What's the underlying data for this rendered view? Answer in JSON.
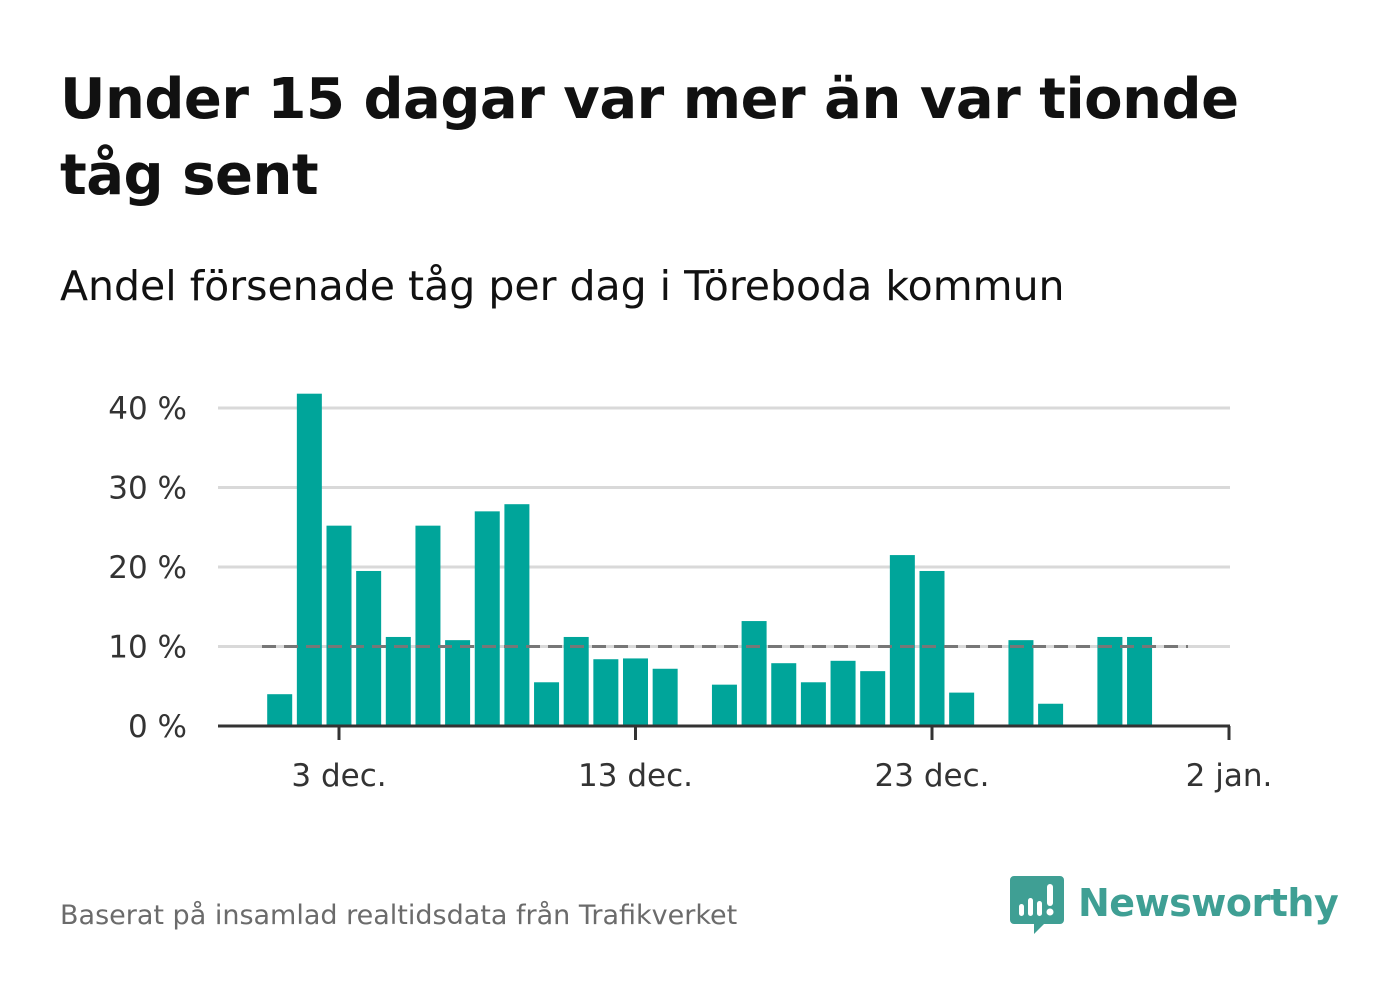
{
  "title": "Under 15 dagar var mer än var tionde tåg sent",
  "subtitle": "Andel försenade tåg per dag i Töreboda kommun",
  "source": "Baserat på insamlad realtidsdata från Trafikverket",
  "brand": {
    "name": "Newsworthy",
    "icon": "newsworthy-logo-icon",
    "color": "#3f9f94"
  },
  "colors": {
    "bar": "#00a59a",
    "reference_line": "#777777",
    "grid": "#d9d9d9",
    "axis": "#333333"
  },
  "chart_data": {
    "type": "bar",
    "x_start_day": 1,
    "x_ticks": [
      {
        "day": 3,
        "label": "3 dec."
      },
      {
        "day": 13,
        "label": "13 dec."
      },
      {
        "day": 23,
        "label": "23 dec."
      },
      {
        "day": 33,
        "label": "2 jan."
      }
    ],
    "y_ticks": [
      {
        "value": 0,
        "label": "0 %"
      },
      {
        "value": 10,
        "label": "10 %"
      },
      {
        "value": 20,
        "label": "20 %"
      },
      {
        "value": 30,
        "label": "30 %"
      },
      {
        "value": 40,
        "label": "40 %"
      }
    ],
    "ylim": [
      0,
      40
    ],
    "reference_line": 10,
    "values": [
      4,
      41.8,
      25.2,
      19.5,
      11.2,
      25.2,
      10.8,
      27,
      27.9,
      5.5,
      11.2,
      8.4,
      8.5,
      7.2,
      0,
      5.2,
      13.2,
      7.9,
      5.5,
      8.2,
      6.9,
      21.5,
      19.5,
      4.2,
      0,
      10.8,
      2.8,
      0,
      11.2,
      11.2
    ],
    "grid": true
  }
}
